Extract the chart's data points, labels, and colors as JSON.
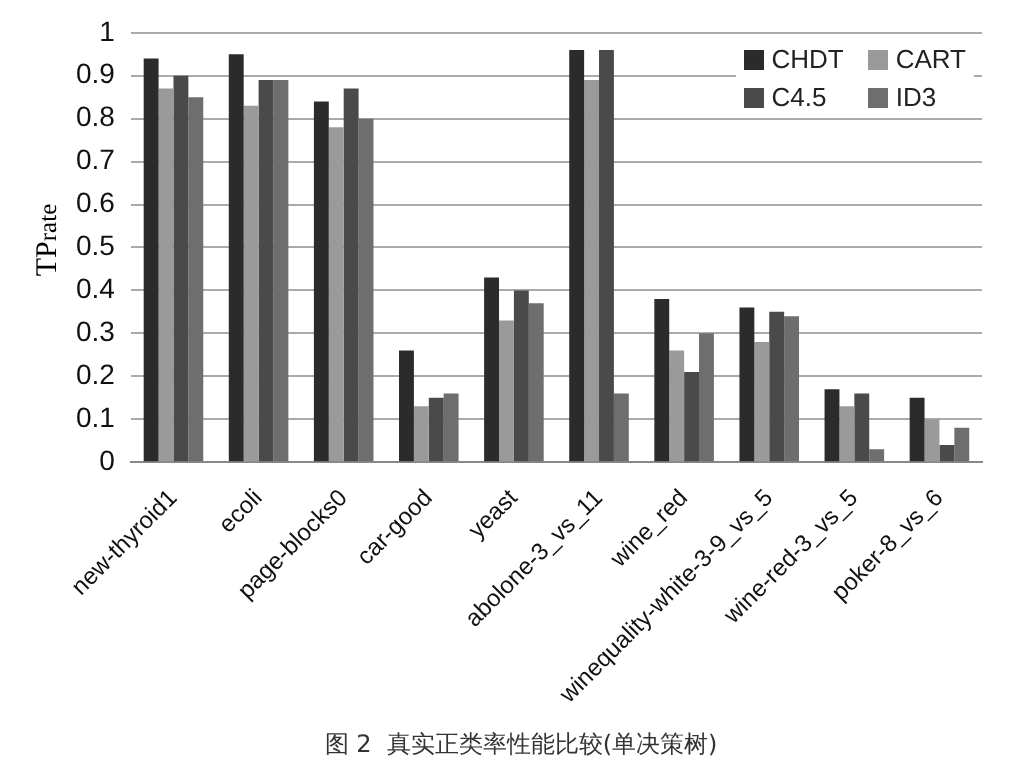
{
  "chart_data": {
    "type": "bar",
    "title": "图 2  真实正类率性能比较(单决策树)",
    "ylabel": "TP$_{rate}$",
    "categories": [
      "new-thyroid1",
      "ecoli",
      "page-blocks0",
      "car-good",
      "yeast",
      "abolone-3_vs_11",
      "wine_red",
      "winequality-white-3-9_vs_5",
      "wine-red-3_vs_5",
      "poker-8_vs_6"
    ],
    "series": [
      {
        "name": "CHDT",
        "color": "#2b2b2b",
        "values": [
          0.94,
          0.95,
          0.84,
          0.26,
          0.43,
          0.96,
          0.38,
          0.36,
          0.17,
          0.15
        ]
      },
      {
        "name": "CART",
        "color": "#9a9a9a",
        "values": [
          0.87,
          0.83,
          0.78,
          0.13,
          0.33,
          0.89,
          0.26,
          0.28,
          0.13,
          0.1
        ]
      },
      {
        "name": "C4.5",
        "color": "#4a4a4a",
        "values": [
          0.9,
          0.89,
          0.87,
          0.15,
          0.4,
          0.96,
          0.21,
          0.35,
          0.16,
          0.04
        ]
      },
      {
        "name": "ID3",
        "color": "#6e6e6e",
        "values": [
          0.85,
          0.89,
          0.8,
          0.16,
          0.37,
          0.16,
          0.3,
          0.34,
          0.03,
          0.08
        ]
      }
    ],
    "ylim": [
      0,
      1
    ],
    "yticks": [
      0,
      0.1,
      0.2,
      0.3,
      0.4,
      0.5,
      0.6,
      0.7,
      0.8,
      0.9,
      1
    ],
    "grid": "y",
    "legend": "top right"
  }
}
